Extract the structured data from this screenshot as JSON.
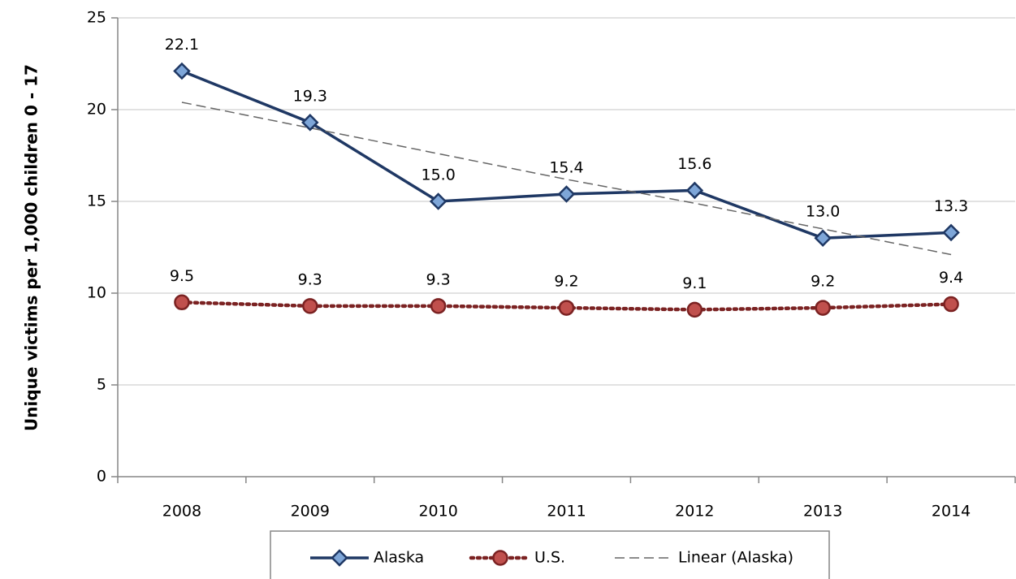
{
  "chart_data": {
    "type": "line",
    "y_label": "Unique victims per 1,000 children 0 - 17",
    "categories": [
      "2008",
      "2009",
      "2010",
      "2011",
      "2012",
      "2013",
      "2014"
    ],
    "series": [
      {
        "name": "Alaska",
        "color": "#1f3864",
        "marker": "diamond",
        "marker_fill": "#7ea6d8",
        "dash": "solid",
        "values": [
          22.1,
          19.3,
          15.0,
          15.4,
          15.6,
          13.0,
          13.3
        ],
        "value_labels": [
          "22.1",
          "19.3",
          "15.0",
          "15.4",
          "15.6",
          "13.0",
          "13.3"
        ]
      },
      {
        "name": "U.S.",
        "color": "#7b2222",
        "marker": "circle",
        "marker_fill": "#c0504d",
        "dash": "dotted",
        "values": [
          9.5,
          9.3,
          9.3,
          9.2,
          9.1,
          9.2,
          9.4
        ],
        "value_labels": [
          "9.5",
          "9.3",
          "9.3",
          "9.2",
          "9.1",
          "9.2",
          "9.4"
        ]
      },
      {
        "name": "Linear (Alaska)",
        "color": "#666666",
        "marker": "none",
        "dash": "dashed",
        "values": [
          20.4,
          19.0,
          17.6,
          16.2,
          14.9,
          13.5,
          12.1
        ]
      }
    ],
    "ylim": [
      0,
      25
    ],
    "yticks": [
      0,
      5,
      10,
      15,
      20,
      25
    ],
    "grid": true,
    "legend": "bottom"
  }
}
